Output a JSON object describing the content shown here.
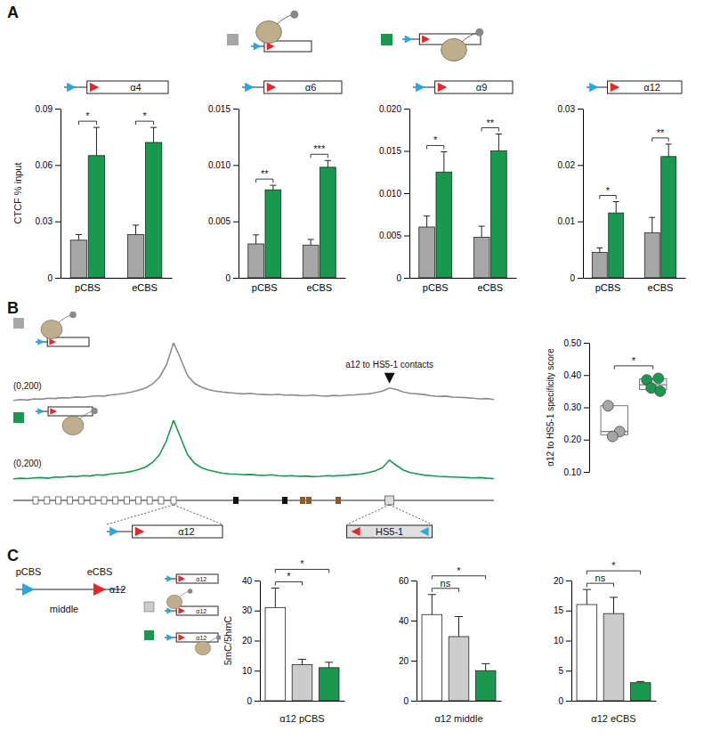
{
  "panels": [
    "A",
    "B",
    "C"
  ],
  "schematics": {
    "map_labels": [
      "α12",
      "HS5-1"
    ],
    "c_labels": [
      "pCBS",
      "eCBS",
      "middle",
      "α12"
    ]
  },
  "chart_data": [
    {
      "type": "bar",
      "title": "α4",
      "y_label": "CTCF % input",
      "categories": [
        "pCBS",
        "eCBS"
      ],
      "series": [
        {
          "color": "#a6a6a6",
          "values": [
            0.02,
            0.023
          ],
          "errors": [
            0.003,
            0.005
          ]
        },
        {
          "color": "#1a9850",
          "values": [
            0.065,
            0.072
          ],
          "errors": [
            0.015,
            0.008
          ]
        }
      ],
      "ylim": [
        0,
        0.09
      ],
      "yticks": [
        0,
        0.03,
        0.06,
        0.09
      ],
      "significance": [
        "*",
        "*"
      ]
    },
    {
      "type": "bar",
      "title": "α6",
      "categories": [
        "pCBS",
        "eCBS"
      ],
      "series": [
        {
          "color": "#a6a6a6",
          "values": [
            0.003,
            0.0029
          ],
          "errors": [
            0.0008,
            0.0005
          ]
        },
        {
          "color": "#1a9850",
          "values": [
            0.0078,
            0.0098
          ],
          "errors": [
            0.0004,
            0.0006
          ]
        }
      ],
      "ylim": [
        0,
        0.015
      ],
      "yticks": [
        0,
        0.005,
        {
          "value": 0.01,
          "label": "0.010"
        },
        0.015
      ],
      "significance": [
        "**",
        "***"
      ]
    },
    {
      "type": "bar",
      "title": "α9",
      "categories": [
        "pCBS",
        "eCBS"
      ],
      "series": [
        {
          "color": "#a6a6a6",
          "values": [
            0.006,
            0.0048
          ],
          "errors": [
            0.0013,
            0.0013
          ]
        },
        {
          "color": "#1a9850",
          "values": [
            0.0125,
            0.015
          ],
          "errors": [
            0.0024,
            0.002
          ]
        }
      ],
      "ylim": [
        0,
        0.02
      ],
      "yticks": [
        0,
        0.005,
        {
          "value": 0.01,
          "label": "0.010"
        },
        0.015,
        {
          "value": 0.02,
          "label": "0.020"
        }
      ],
      "significance": [
        "*",
        "**"
      ]
    },
    {
      "type": "bar",
      "title": "α12",
      "categories": [
        "pCBS",
        "eCBS"
      ],
      "series": [
        {
          "color": "#a6a6a6",
          "values": [
            0.0045,
            0.008
          ],
          "errors": [
            0.0008,
            0.0027
          ]
        },
        {
          "color": "#1a9850",
          "values": [
            0.0115,
            0.0215
          ],
          "errors": [
            0.002,
            0.0022
          ]
        }
      ],
      "ylim": [
        0,
        0.03
      ],
      "yticks": [
        0,
        0.01,
        0.02,
        0.03
      ],
      "significance": [
        "*",
        "**"
      ]
    },
    {
      "type": "line",
      "ylim": [
        0,
        200
      ],
      "tick_labels": false,
      "range_label": "(0,200)",
      "annotation": {
        "text": "a12 to HS5-1 contacts",
        "x": 54
      },
      "series": [
        {
          "color": "#8c8c8c",
          "values": [
            15,
            18,
            16,
            20,
            19,
            22,
            21,
            24,
            23,
            26,
            25,
            28,
            30,
            29,
            33,
            35,
            38,
            42,
            48,
            55,
            68,
            90,
            130,
            200,
            150,
            95,
            70,
            58,
            50,
            45,
            42,
            40,
            38,
            36,
            38,
            35,
            34,
            33,
            35,
            32,
            33,
            31,
            30,
            32,
            30,
            29,
            31,
            30,
            32,
            33,
            35,
            36,
            40,
            45,
            55,
            50,
            42,
            38,
            36,
            34,
            30,
            28,
            29,
            26,
            25,
            24,
            22,
            20,
            21,
            18
          ]
        },
        {
          "color": "#1a9850",
          "values": [
            12,
            14,
            13,
            15,
            16,
            14,
            18,
            17,
            20,
            19,
            22,
            21,
            25,
            24,
            28,
            30,
            32,
            36,
            42,
            50,
            65,
            90,
            135,
            200,
            145,
            90,
            62,
            48,
            40,
            35,
            30,
            28,
            27,
            25,
            26,
            24,
            23,
            25,
            22,
            21,
            22,
            20,
            21,
            19,
            20,
            22,
            21,
            23,
            24,
            26,
            28,
            32,
            38,
            48,
            72,
            55,
            40,
            32,
            28,
            24,
            22,
            20,
            19,
            18,
            17,
            16,
            15,
            16,
            14,
            13
          ]
        }
      ]
    },
    {
      "type": "box",
      "y_label": "α12 to HS5-1 specificity score",
      "groups": [
        {
          "color": "#a6a6a6",
          "points": [
            0.305,
            0.225,
            0.21
          ],
          "q1": 0.215,
          "median": 0.225,
          "q3": 0.305
        },
        {
          "color": "#1a9850",
          "points": [
            0.385,
            0.39,
            0.36,
            0.35
          ],
          "q1": 0.355,
          "median": 0.37,
          "q3": 0.388
        }
      ],
      "ylim": [
        0.1,
        0.5
      ],
      "yticks": [
        {
          "value": 0.1,
          "label": "0.10"
        },
        {
          "value": 0.2,
          "label": "0.20"
        },
        {
          "value": 0.3,
          "label": "0.30"
        },
        {
          "value": 0.4,
          "label": "0.40"
        },
        {
          "value": 0.5,
          "label": "0.50"
        }
      ],
      "significance": [
        {
          "categories": [
            0,
            1
          ],
          "label": "*"
        }
      ]
    },
    {
      "type": "bar",
      "x_label": "α12 pCBS",
      "y_label": "5mC/5hmC",
      "categories": [
        null,
        null,
        null
      ],
      "values": [
        31,
        12,
        11
      ],
      "errors": [
        6.5,
        1.8,
        1.8
      ],
      "colors": [
        "#ffffff",
        "#cccccc",
        "#1a9850"
      ],
      "ylim": [
        0,
        40
      ],
      "yticks": [
        0,
        10,
        20,
        30,
        40
      ],
      "significance": [
        {
          "categories": [
            0,
            1
          ],
          "label": "*"
        },
        {
          "categories": [
            0,
            2
          ],
          "label": "*"
        }
      ]
    },
    {
      "type": "bar",
      "x_label": "α12 middle",
      "categories": [
        null,
        null,
        null
      ],
      "values": [
        43,
        32,
        15
      ],
      "errors": [
        10,
        10,
        3.5
      ],
      "colors": [
        "#ffffff",
        "#cccccc",
        "#1a9850"
      ],
      "ylim": [
        0,
        60
      ],
      "yticks": [
        0,
        20,
        40,
        60
      ],
      "significance": [
        {
          "categories": [
            0,
            1
          ],
          "label": "ns"
        },
        {
          "categories": [
            0,
            2
          ],
          "label": "*"
        }
      ]
    },
    {
      "type": "bar",
      "x_label": "α12 eCBS",
      "categories": [
        null,
        null,
        null
      ],
      "values": [
        16,
        14.5,
        3
      ],
      "errors": [
        2.5,
        2.7,
        0.2
      ],
      "colors": [
        "#ffffff",
        "#cccccc",
        "#1a9850"
      ],
      "ylim": [
        0,
        20
      ],
      "yticks": [
        0,
        5,
        10,
        15,
        20
      ],
      "significance": [
        {
          "categories": [
            0,
            1
          ],
          "label": "ns"
        },
        {
          "categories": [
            0,
            2
          ],
          "label": "*"
        }
      ]
    }
  ]
}
